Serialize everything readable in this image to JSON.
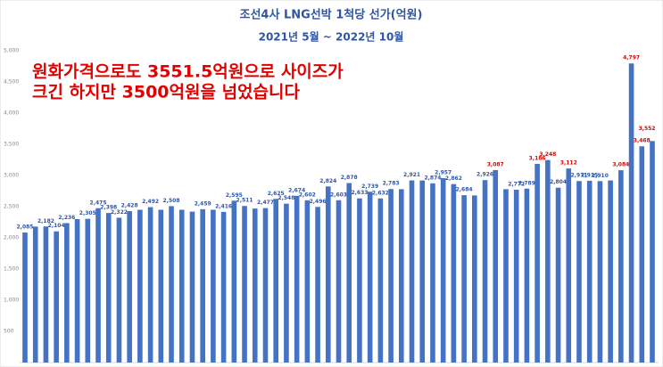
{
  "chart_data": {
    "type": "bar",
    "title": "조선4사 LNG선박 1척당 선가(억원)",
    "subtitle": "2021년 5월 ~ 2022년 10월",
    "annotation": [
      "원화가격으로도 3551.5억원으로 사이즈가",
      "크긴 하지만 3500억원을 넘었습니다"
    ],
    "color": "#4472c4",
    "values": [
      2085,
      2180,
      2182,
      2104,
      2236,
      2300,
      2305,
      2475,
      2398,
      2322,
      2428,
      2450,
      2492,
      2450,
      2508,
      2450,
      2420,
      2459,
      2450,
      2416,
      2595,
      2511,
      2470,
      2477,
      2625,
      2548,
      2674,
      2602,
      2496,
      2824,
      2603,
      2878,
      2633,
      2739,
      2632,
      2783,
      2780,
      2921,
      2920,
      2874,
      2957,
      2862,
      2684,
      2680,
      2926,
      3087,
      2780,
      2772,
      2789,
      3186,
      3248,
      2804,
      3112,
      2911,
      2915,
      2910,
      2920,
      3084,
      4797,
      3468,
      3552
    ],
    "value_labels": [
      "2,085",
      null,
      "2,182",
      "2,104",
      "2,236",
      null,
      "2,305",
      "2,475",
      "2,398",
      "2,322",
      "2,428",
      null,
      "2,492",
      null,
      "2,508",
      null,
      null,
      "2,459",
      null,
      "2,416",
      "2,595",
      "2,511",
      null,
      "2,477",
      "2,625",
      "2,548",
      "2,674",
      "2,602",
      "2,496",
      "2,824",
      "2,603",
      "2,878",
      "2,633",
      "2,739",
      "2,632",
      "2,783",
      null,
      "2,921",
      null,
      "2,874",
      "2,957",
      "2,862",
      "2,684",
      null,
      "2,926",
      "3,087",
      null,
      "2,772",
      "2,789",
      "3,186",
      "3,248",
      "2,804",
      "3,112",
      "2,911",
      "2,915",
      "2,910",
      null,
      "3,084",
      "4,797",
      "3,468",
      "3,552"
    ],
    "highlight_color": "#e00000",
    "label_color": "#2f55a4",
    "highlight_labels": [
      45,
      49,
      50,
      52,
      57,
      58,
      59,
      60
    ],
    "ylim": [
      0,
      5000
    ],
    "yticks": [
      {
        "value": 500,
        "label": "500"
      },
      {
        "value": 1000,
        "label": "1,000"
      },
      {
        "value": 1500,
        "label": "1,500"
      },
      {
        "value": 2000,
        "label": "2,000"
      },
      {
        "value": 2500,
        "label": "2,500"
      },
      {
        "value": 3000,
        "label": "3,000"
      },
      {
        "value": 3500,
        "label": "3,500"
      },
      {
        "value": 4000,
        "label": "4,000"
      },
      {
        "value": 4500,
        "label": "4,500"
      },
      {
        "value": 5000,
        "label": "5,000"
      }
    ],
    "grid": false
  }
}
